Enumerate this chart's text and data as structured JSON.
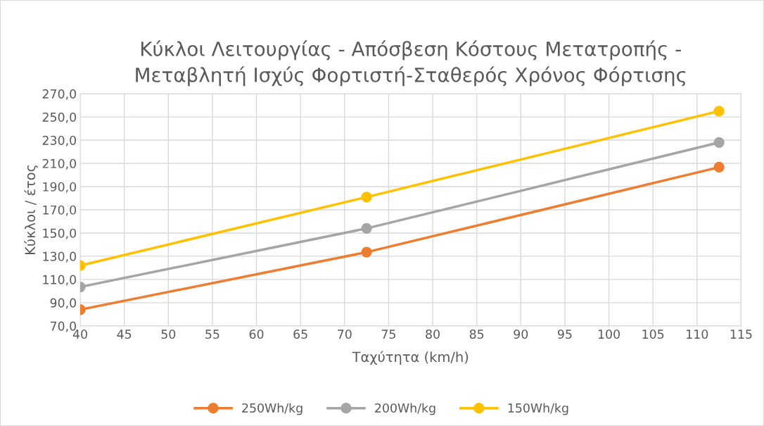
{
  "chart_data": {
    "type": "line",
    "title": "Κύκλοι Λειτουργίας - Απόσβεση Κόστους Μετατροπής -\nΜεταβλητή Ισχύς Φορτιστή-Σταθερός Χρόνος Φόρτισης",
    "xlabel": "Ταχύτητα (km/h)",
    "ylabel": "Κύκλοι / έτος",
    "x": [
      40,
      72.5,
      112.5
    ],
    "series": [
      {
        "name": "250Wh/kg",
        "color": "#ed7d31",
        "values": [
          84,
          133.5,
          206.7
        ]
      },
      {
        "name": "200Wh/kg",
        "color": "#a5a5a5",
        "values": [
          103.5,
          154,
          228
        ]
      },
      {
        "name": "150Wh/kg",
        "color": "#ffc000",
        "values": [
          122,
          181,
          255
        ]
      }
    ],
    "xlim": [
      40,
      115
    ],
    "xticks": [
      40,
      45,
      50,
      55,
      60,
      65,
      70,
      75,
      80,
      85,
      90,
      95,
      100,
      105,
      110,
      115
    ],
    "ylim": [
      70,
      270
    ],
    "yticks": [
      {
        "value": 70,
        "label": "70,0"
      },
      {
        "value": 90,
        "label": "90,0"
      },
      {
        "value": 110,
        "label": "110,0"
      },
      {
        "value": 130,
        "label": "130,0"
      },
      {
        "value": 150,
        "label": "150,0"
      },
      {
        "value": 170,
        "label": "170,0"
      },
      {
        "value": 190,
        "label": "190,0"
      },
      {
        "value": 210,
        "label": "210,0"
      },
      {
        "value": 230,
        "label": "230,0"
      },
      {
        "value": 250,
        "label": "250,0"
      },
      {
        "value": 270,
        "label": "270,0"
      }
    ],
    "grid": true,
    "legend": "bottom",
    "marker": "circle",
    "line_style": "solid"
  }
}
